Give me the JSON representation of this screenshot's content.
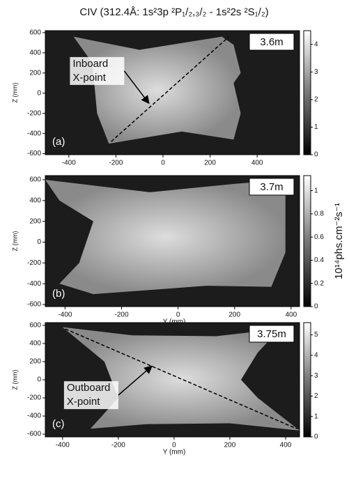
{
  "chart_data": [
    {
      "type": "image",
      "title": "CIV (312.4Å: 1s²3p ²P₁/₂,₃/₂ - 1s²2s ²S₁/₂)",
      "panel_label": "(a)",
      "distance": "3.6m",
      "annotation": [
        "Inboard",
        "X-point"
      ],
      "ylabel": "Z (mm)",
      "xlim": [
        -500,
        580
      ],
      "ylim": [
        -610,
        620
      ],
      "xticks": [
        -400,
        -200,
        0,
        200,
        400
      ],
      "yticks": [
        -600,
        -400,
        -200,
        0,
        200,
        400,
        600
      ],
      "clim": [
        0,
        4.5
      ],
      "cticks": [
        0,
        1,
        2,
        3,
        4
      ]
    },
    {
      "type": "image",
      "panel_label": "(b)",
      "distance": "3.7m",
      "ylabel": "Z (mm)",
      "xlabel": "Y (mm)",
      "colorbar_label": "10¹⁴phs.cm⁻²s⁻¹",
      "xlim": [
        -470,
        430
      ],
      "ylim": [
        -620,
        640
      ],
      "xticks": [
        -400,
        -200,
        0,
        200,
        400
      ],
      "yticks": [
        -600,
        -400,
        -200,
        0,
        200,
        400,
        600
      ],
      "clim": [
        0,
        1.13
      ],
      "cticks": [
        0,
        0.2,
        0.4,
        0.6,
        0.8,
        1
      ]
    },
    {
      "type": "image",
      "panel_label": "(c)",
      "distance": "3.75m",
      "annotation": [
        "Outboard",
        "X-point"
      ],
      "ylabel": "Z (mm)",
      "xlabel": "Y (mm)",
      "xlim": [
        -462,
        450
      ],
      "ylim": [
        -630,
        630
      ],
      "xticks": [
        -400,
        -200,
        0,
        200,
        400
      ],
      "yticks": [
        -600,
        -400,
        -200,
        0,
        200,
        400,
        600
      ],
      "clim": [
        0,
        5.6
      ],
      "cticks": [
        0,
        1,
        2,
        3,
        4,
        5
      ]
    }
  ]
}
